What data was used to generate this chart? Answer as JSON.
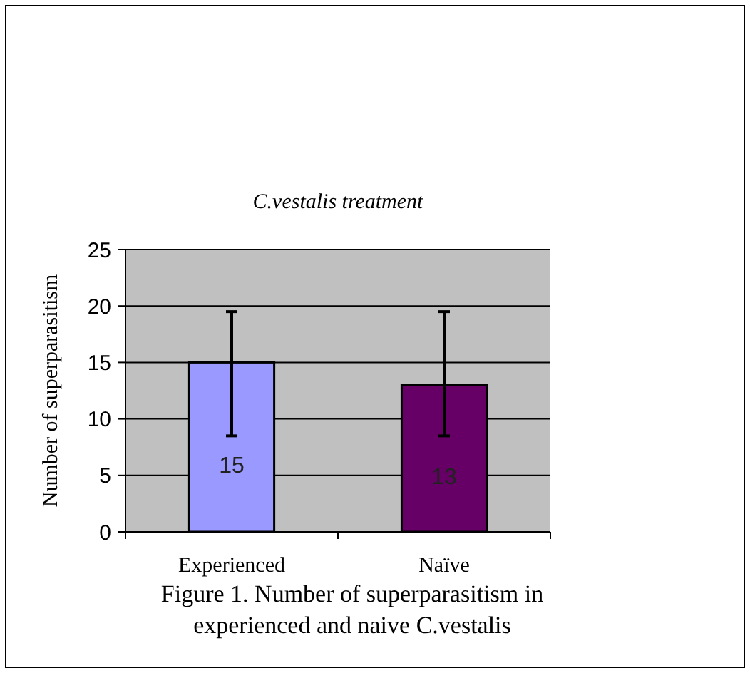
{
  "chart_data": {
    "type": "bar",
    "title": "C.vestalis treatment",
    "ylabel": "Number of superparasitism",
    "categories": [
      "Experienced",
      "Naïve"
    ],
    "values": [
      15,
      13
    ],
    "colors": [
      "#9999ff",
      "#660066"
    ],
    "errors": [
      [
        8.5,
        19.5
      ],
      [
        8.5,
        19.5
      ]
    ],
    "data_labels": true,
    "ylim": [
      0,
      25
    ],
    "yticks": [
      0,
      5,
      10,
      15,
      20,
      25
    ],
    "grid": "y",
    "annotations": [
      "Figure 1. Number of superparasitism in experienced and naive C.vestalis"
    ]
  }
}
